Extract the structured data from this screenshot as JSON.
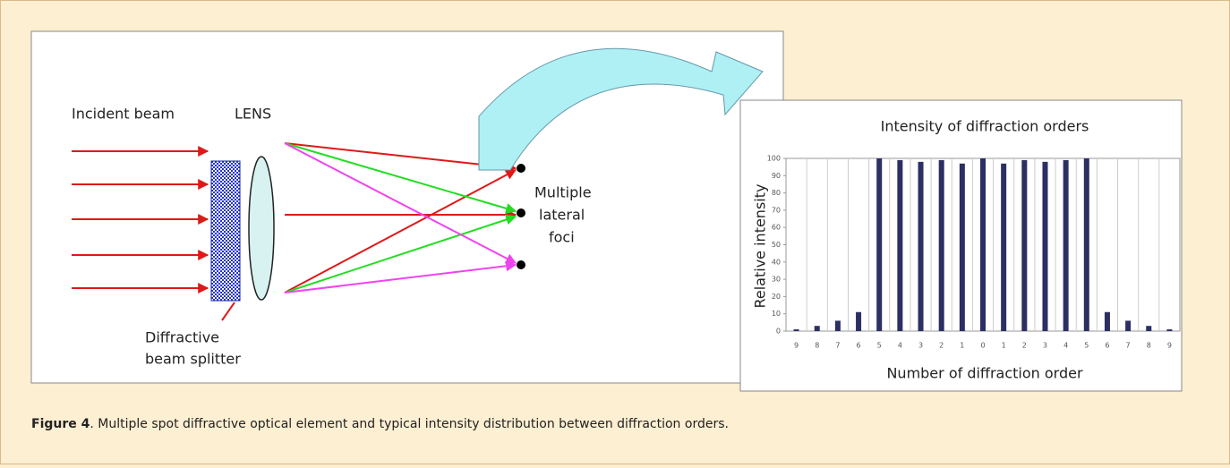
{
  "diagram": {
    "incident_beam": "Incident beam",
    "lens": "LENS",
    "beam_splitter": [
      "Diffractive",
      "beam splitter"
    ],
    "foci": [
      "Multiple",
      "lateral",
      "foci"
    ]
  },
  "chart_data": {
    "type": "bar",
    "title": "Intensity of diffraction orders",
    "x_label": "Number of diffraction order",
    "y_label": "Relative intensity",
    "categories": [
      "9",
      "8",
      "7",
      "6",
      "5",
      "4",
      "3",
      "2",
      "1",
      "0",
      "1",
      "2",
      "3",
      "4",
      "5",
      "6",
      "7",
      "8",
      "9"
    ],
    "values": [
      1,
      3,
      6,
      11,
      100,
      99,
      98,
      99,
      97,
      100,
      97,
      99,
      98,
      99,
      100,
      11,
      6,
      3,
      1
    ],
    "color": "#2b2f63",
    "ylim": [
      0,
      100
    ],
    "yticks": [
      0,
      10,
      20,
      30,
      40,
      50,
      60,
      70,
      80,
      90,
      100
    ],
    "grid": true
  },
  "caption": {
    "label": "Figure 4",
    "text": ". Multiple spot diffractive optical element and typical intensity distribution between diffraction orders."
  }
}
